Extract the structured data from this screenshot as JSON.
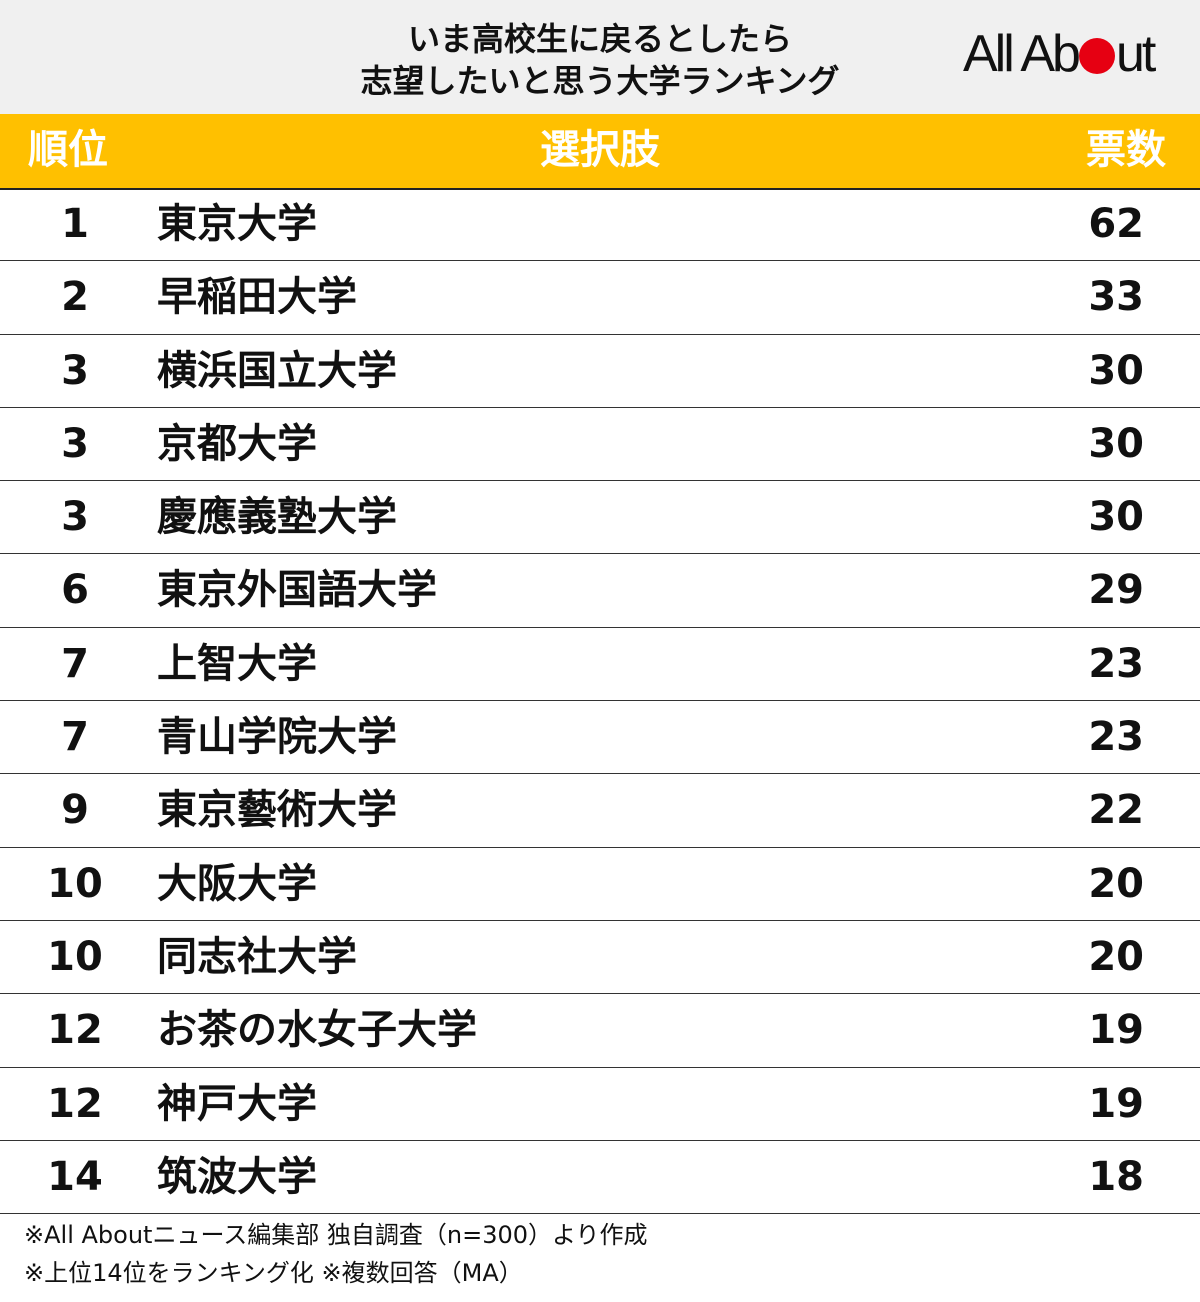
{
  "header": {
    "title_line1": "いま高校生に戻るとしたら",
    "title_line2": "志望したいと思う大学ランキング",
    "logo_left": "All Ab",
    "logo_right": "ut"
  },
  "table": {
    "columns": {
      "rank": "順位",
      "choice": "選択肢",
      "votes": "票数"
    },
    "rows": [
      {
        "rank": "1",
        "name": "東京大学",
        "votes": "62"
      },
      {
        "rank": "2",
        "name": "早稲田大学",
        "votes": "33"
      },
      {
        "rank": "3",
        "name": "横浜国立大学",
        "votes": "30"
      },
      {
        "rank": "3",
        "name": "京都大学",
        "votes": "30"
      },
      {
        "rank": "3",
        "name": "慶應義塾大学",
        "votes": "30"
      },
      {
        "rank": "6",
        "name": "東京外国語大学",
        "votes": "29"
      },
      {
        "rank": "7",
        "name": "上智大学",
        "votes": "23"
      },
      {
        "rank": "7",
        "name": "青山学院大学",
        "votes": "23"
      },
      {
        "rank": "9",
        "name": "東京藝術大学",
        "votes": "22"
      },
      {
        "rank": "10",
        "name": "大阪大学",
        "votes": "20"
      },
      {
        "rank": "10",
        "name": "同志社大学",
        "votes": "20"
      },
      {
        "rank": "12",
        "name": "お茶の水女子大学",
        "votes": "19"
      },
      {
        "rank": "12",
        "name": "神戸大学",
        "votes": "19"
      },
      {
        "rank": "14",
        "name": "筑波大学",
        "votes": "18"
      }
    ]
  },
  "footer": {
    "note1": "※All Aboutニュース編集部 独自調査（n=300）より作成",
    "note2": "※上位14位をランキング化 ※複数回答（MA）"
  },
  "colors": {
    "header_band": "#ffc000",
    "logo_dot": "#e60012",
    "title_bg": "#f0f0f0"
  }
}
